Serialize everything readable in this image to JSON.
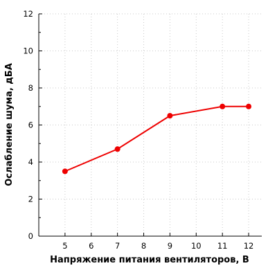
{
  "chart_data": {
    "type": "line",
    "xlabel": "Напряжение питания вентиляторов, В",
    "ylabel": "Ослабление шума, дБА",
    "xlim": [
      4,
      12.5
    ],
    "ylim": [
      0,
      12
    ],
    "x_ticks": [
      5,
      6,
      7,
      8,
      9,
      10,
      11,
      12
    ],
    "y_ticks": [
      0,
      2,
      4,
      6,
      8,
      10,
      12
    ],
    "grid": true,
    "series": [
      {
        "color": "#ee0000",
        "x": [
          5,
          7,
          9,
          11,
          12
        ],
        "y": [
          3.5,
          4.7,
          6.5,
          7.0,
          7.0
        ]
      }
    ]
  }
}
